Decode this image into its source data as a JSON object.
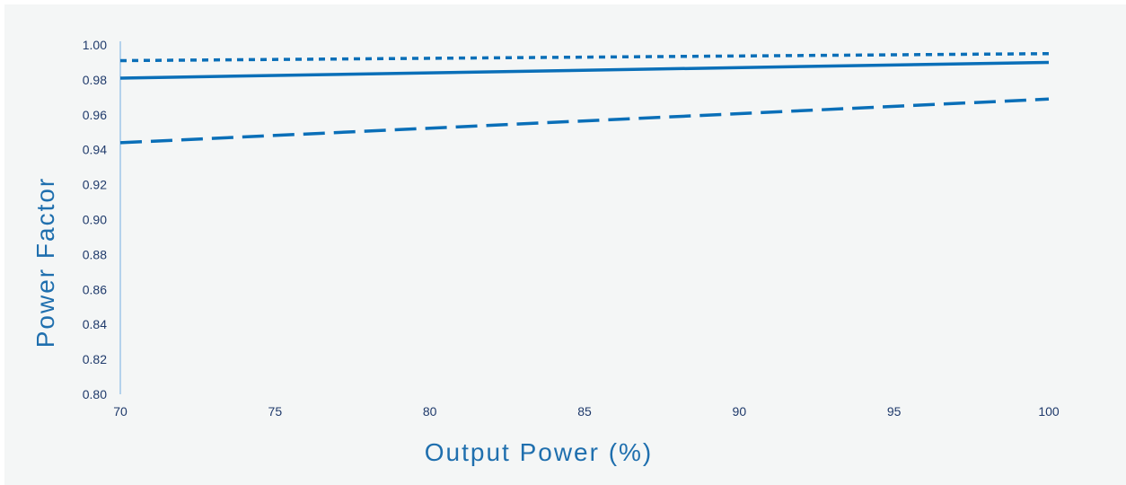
{
  "chart_data": {
    "type": "line",
    "xlabel": "Output Power (%)",
    "ylabel": "Power Factor",
    "xlim": [
      70,
      100
    ],
    "ylim": [
      0.8,
      1.0
    ],
    "x_ticks": [
      "70",
      "75",
      "80",
      "85",
      "90",
      "95",
      "100"
    ],
    "y_ticks": [
      "0.80",
      "0.82",
      "0.84",
      "0.86",
      "0.88",
      "0.90",
      "0.92",
      "0.94",
      "0.96",
      "0.98",
      "1.00"
    ],
    "grid": false,
    "legend": "none",
    "series": [
      {
        "x": [
          70,
          100
        ],
        "y": [
          0.991,
          0.995
        ],
        "style": "dotted",
        "color": "#0a6fb8"
      },
      {
        "x": [
          70,
          100
        ],
        "y": [
          0.981,
          0.99
        ],
        "style": "solid",
        "color": "#0a6fb8"
      },
      {
        "x": [
          70,
          100
        ],
        "y": [
          0.944,
          0.969
        ],
        "style": "dashed",
        "color": "#0a6fb8"
      }
    ],
    "axis_color": "#9ec5e8"
  }
}
